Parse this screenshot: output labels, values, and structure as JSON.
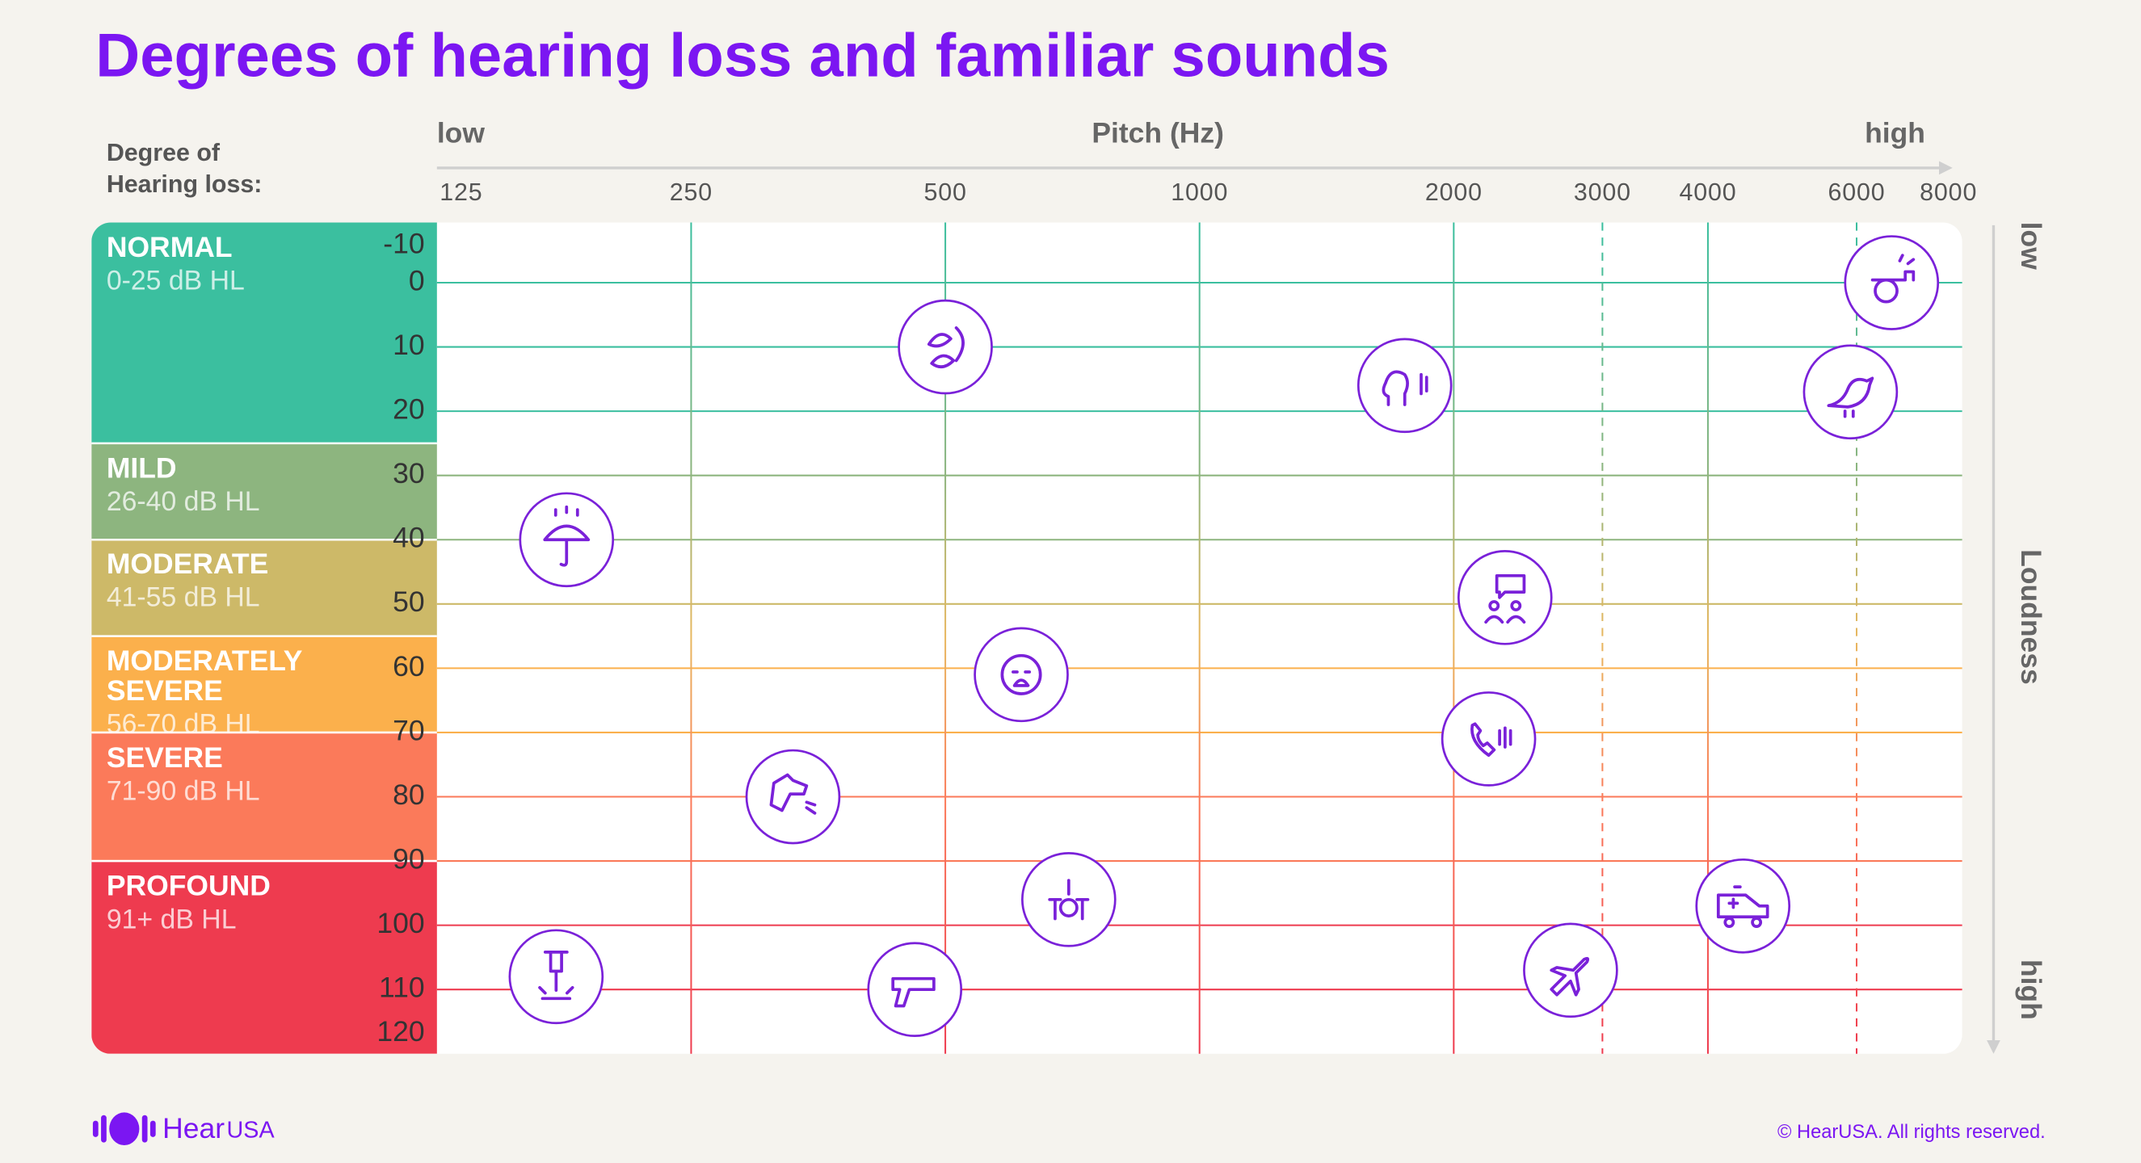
{
  "title": "Degrees of hearing loss and familiar sounds",
  "band_header": [
    "Degree of",
    "Hearing loss:"
  ],
  "logo": {
    "word": "Hear",
    "suffix": "USA"
  },
  "copyright": "© HearUSA. All rights reserved.",
  "chart_data": {
    "type": "scatter",
    "x_label": "Pitch (Hz)",
    "x_low": "low",
    "x_high": "high",
    "y_label": "Loudness",
    "y_low": "low",
    "y_high": "high",
    "x_scale": "log",
    "xlim": [
      125,
      8000
    ],
    "xticks": [
      125,
      250,
      500,
      1000,
      2000,
      3000,
      4000,
      6000,
      8000
    ],
    "ylim": [
      -10,
      120
    ],
    "y_inverted": true,
    "yticks": [
      -10,
      0,
      10,
      20,
      30,
      40,
      50,
      60,
      70,
      80,
      90,
      100,
      110,
      120
    ],
    "grid": true,
    "color": "#7a21d9",
    "bands": [
      {
        "name": "NORMAL",
        "range_text": "0-25 dB HL",
        "range": [
          -10,
          25
        ],
        "color": "#3bbf9f"
      },
      {
        "name": "MILD",
        "range_text": "26-40 dB HL",
        "range": [
          25,
          40
        ],
        "color": "#8db57f"
      },
      {
        "name": "MODERATE",
        "range_text": "41-55 dB HL",
        "range": [
          40,
          55
        ],
        "color": "#cdb968"
      },
      {
        "name": "MODERATELY SEVERE",
        "range_text": "56-70 dB HL",
        "range": [
          55,
          70
        ],
        "color": "#fbb04c"
      },
      {
        "name": "SEVERE",
        "range_text": "71-90 dB HL",
        "range": [
          70,
          90
        ],
        "color": "#fb7a5a"
      },
      {
        "name": "PROFOUND",
        "range_text": "91+ dB HL",
        "range": [
          90,
          120
        ],
        "color": "#ee3b4f"
      }
    ],
    "x": [
      500,
      1750,
      6600,
      5900,
      178,
      2300,
      615,
      2200,
      330,
      700,
      4400,
      173,
      460,
      2750
    ],
    "values": [
      10,
      16,
      0,
      17,
      40,
      49,
      61,
      71,
      80,
      96,
      97,
      108,
      110,
      107
    ]
  }
}
